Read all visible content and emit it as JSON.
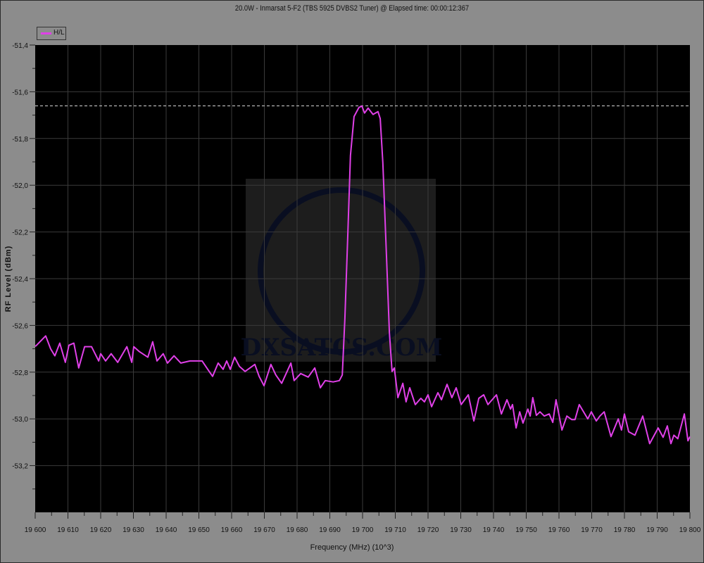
{
  "chart_data": {
    "type": "line",
    "title": "20.0W - Inmarsat 5-F2 (TBS 5925 DVBS2 Tuner) @ Elapsed time: 00:00:12:367",
    "xlabel": "Frequency (MHz) (10^3)",
    "ylabel": "RF Level (dBm)",
    "xlim": [
      19600,
      19800
    ],
    "ylim": [
      -53.4,
      -51.4
    ],
    "x_ticks": [
      "19 600",
      "19 610",
      "19 620",
      "19 630",
      "19 640",
      "19 650",
      "19 660",
      "19 670",
      "19 680",
      "19 690",
      "19 700",
      "19 710",
      "19 720",
      "19 730",
      "19 740",
      "19 750",
      "19 760",
      "19 770",
      "19 780",
      "19 790",
      "19 800"
    ],
    "y_ticks": [
      "-51,4",
      "-51,6",
      "-51,8",
      "-52,0",
      "-52,2",
      "-52,4",
      "-52,6",
      "-52,8",
      "-53,0",
      "-53,2"
    ],
    "grid": true,
    "legend_placement": "top-left",
    "peak_hold_level": -51.66,
    "series": [
      {
        "name": "H/L",
        "color": "#e040e8",
        "points": [
          [
            19600.0,
            -52.69
          ],
          [
            19600.4,
            -52.685
          ],
          [
            19603.2,
            -52.645
          ],
          [
            19604.7,
            -52.7
          ],
          [
            19606.0,
            -52.73
          ],
          [
            19607.5,
            -52.676
          ],
          [
            19609.2,
            -52.758
          ],
          [
            19610.3,
            -52.685
          ],
          [
            19611.8,
            -52.676
          ],
          [
            19613.3,
            -52.782
          ],
          [
            19615.1,
            -52.691
          ],
          [
            19617.2,
            -52.691
          ],
          [
            19619.4,
            -52.752
          ],
          [
            19620.0,
            -52.721
          ],
          [
            19621.5,
            -52.752
          ],
          [
            19623.2,
            -52.721
          ],
          [
            19625.2,
            -52.758
          ],
          [
            19628.0,
            -52.691
          ],
          [
            19629.5,
            -52.758
          ],
          [
            19630.1,
            -52.691
          ],
          [
            19631.8,
            -52.712
          ],
          [
            19634.4,
            -52.736
          ],
          [
            19635.9,
            -52.67
          ],
          [
            19637.2,
            -52.752
          ],
          [
            19639.1,
            -52.721
          ],
          [
            19640.4,
            -52.761
          ],
          [
            19642.4,
            -52.73
          ],
          [
            19644.5,
            -52.761
          ],
          [
            19647.3,
            -52.752
          ],
          [
            19651.0,
            -52.752
          ],
          [
            19652.7,
            -52.788
          ],
          [
            19654.2,
            -52.818
          ],
          [
            19655.9,
            -52.761
          ],
          [
            19657.4,
            -52.788
          ],
          [
            19658.5,
            -52.752
          ],
          [
            19659.6,
            -52.788
          ],
          [
            19660.9,
            -52.736
          ],
          [
            19662.4,
            -52.776
          ],
          [
            19664.1,
            -52.797
          ],
          [
            19667.1,
            -52.767
          ],
          [
            19668.4,
            -52.818
          ],
          [
            19669.9,
            -52.858
          ],
          [
            19672.0,
            -52.767
          ],
          [
            19673.5,
            -52.812
          ],
          [
            19675.3,
            -52.848
          ],
          [
            19678.1,
            -52.761
          ],
          [
            19679.1,
            -52.836
          ],
          [
            19681.1,
            -52.806
          ],
          [
            19683.4,
            -52.821
          ],
          [
            19685.4,
            -52.782
          ],
          [
            19687.1,
            -52.867
          ],
          [
            19688.6,
            -52.836
          ],
          [
            19691.0,
            -52.842
          ],
          [
            19692.9,
            -52.836
          ],
          [
            19693.8,
            -52.812
          ],
          [
            19694.6,
            -52.57
          ],
          [
            19695.5,
            -52.206
          ],
          [
            19696.3,
            -51.873
          ],
          [
            19697.4,
            -51.706
          ],
          [
            19698.9,
            -51.667
          ],
          [
            19699.8,
            -51.661
          ],
          [
            19700.6,
            -51.691
          ],
          [
            19701.7,
            -51.67
          ],
          [
            19703.2,
            -51.697
          ],
          [
            19704.7,
            -51.685
          ],
          [
            19705.4,
            -51.715
          ],
          [
            19706.2,
            -51.903
          ],
          [
            19707.3,
            -52.297
          ],
          [
            19708.2,
            -52.63
          ],
          [
            19709.0,
            -52.797
          ],
          [
            19709.7,
            -52.782
          ],
          [
            19710.8,
            -52.909
          ],
          [
            19712.3,
            -52.848
          ],
          [
            19713.3,
            -52.927
          ],
          [
            19714.4,
            -52.867
          ],
          [
            19716.1,
            -52.939
          ],
          [
            19717.8,
            -52.912
          ],
          [
            19718.9,
            -52.927
          ],
          [
            19720.0,
            -52.897
          ],
          [
            19721.1,
            -52.948
          ],
          [
            19723.0,
            -52.888
          ],
          [
            19724.1,
            -52.918
          ],
          [
            19725.8,
            -52.852
          ],
          [
            19727.3,
            -52.909
          ],
          [
            19728.6,
            -52.867
          ],
          [
            19730.1,
            -52.939
          ],
          [
            19732.3,
            -52.897
          ],
          [
            19734.0,
            -53.009
          ],
          [
            19735.5,
            -52.912
          ],
          [
            19737.0,
            -52.897
          ],
          [
            19738.3,
            -52.939
          ],
          [
            19740.9,
            -52.897
          ],
          [
            19742.4,
            -52.979
          ],
          [
            19744.1,
            -52.918
          ],
          [
            19745.2,
            -52.958
          ],
          [
            19745.8,
            -52.939
          ],
          [
            19746.9,
            -53.039
          ],
          [
            19748.0,
            -52.97
          ],
          [
            19749.0,
            -53.018
          ],
          [
            19750.5,
            -52.958
          ],
          [
            19751.2,
            -52.988
          ],
          [
            19752.0,
            -52.909
          ],
          [
            19753.1,
            -52.985
          ],
          [
            19754.2,
            -52.97
          ],
          [
            19755.5,
            -52.988
          ],
          [
            19757.0,
            -52.979
          ],
          [
            19758.1,
            -53.015
          ],
          [
            19759.1,
            -52.918
          ],
          [
            19760.9,
            -53.048
          ],
          [
            19762.4,
            -52.988
          ],
          [
            19763.9,
            -53.003
          ],
          [
            19764.9,
            -53.003
          ],
          [
            19766.2,
            -52.939
          ],
          [
            19768.8,
            -53.0
          ],
          [
            19769.9,
            -52.97
          ],
          [
            19771.4,
            -53.009
          ],
          [
            19772.5,
            -52.988
          ],
          [
            19773.8,
            -52.97
          ],
          [
            19775.9,
            -53.076
          ],
          [
            19778.1,
            -53.0
          ],
          [
            19779.1,
            -53.048
          ],
          [
            19780.0,
            -52.979
          ],
          [
            19781.3,
            -53.055
          ],
          [
            19783.2,
            -53.07
          ],
          [
            19785.6,
            -52.988
          ],
          [
            19787.7,
            -53.106
          ],
          [
            19790.3,
            -53.039
          ],
          [
            19791.8,
            -53.079
          ],
          [
            19793.1,
            -53.03
          ],
          [
            19794.2,
            -53.106
          ],
          [
            19795.1,
            -53.07
          ],
          [
            19796.3,
            -53.085
          ],
          [
            19798.3,
            -52.979
          ],
          [
            19799.4,
            -53.094
          ],
          [
            19800.0,
            -53.076
          ]
        ]
      }
    ]
  },
  "watermark": {
    "text": "DXSATCS.COM"
  },
  "colors": {
    "background": "#8c8c8c",
    "plot_bg": "#000000",
    "grid": "#3a3a3a",
    "peak_line": "#dddddd"
  }
}
